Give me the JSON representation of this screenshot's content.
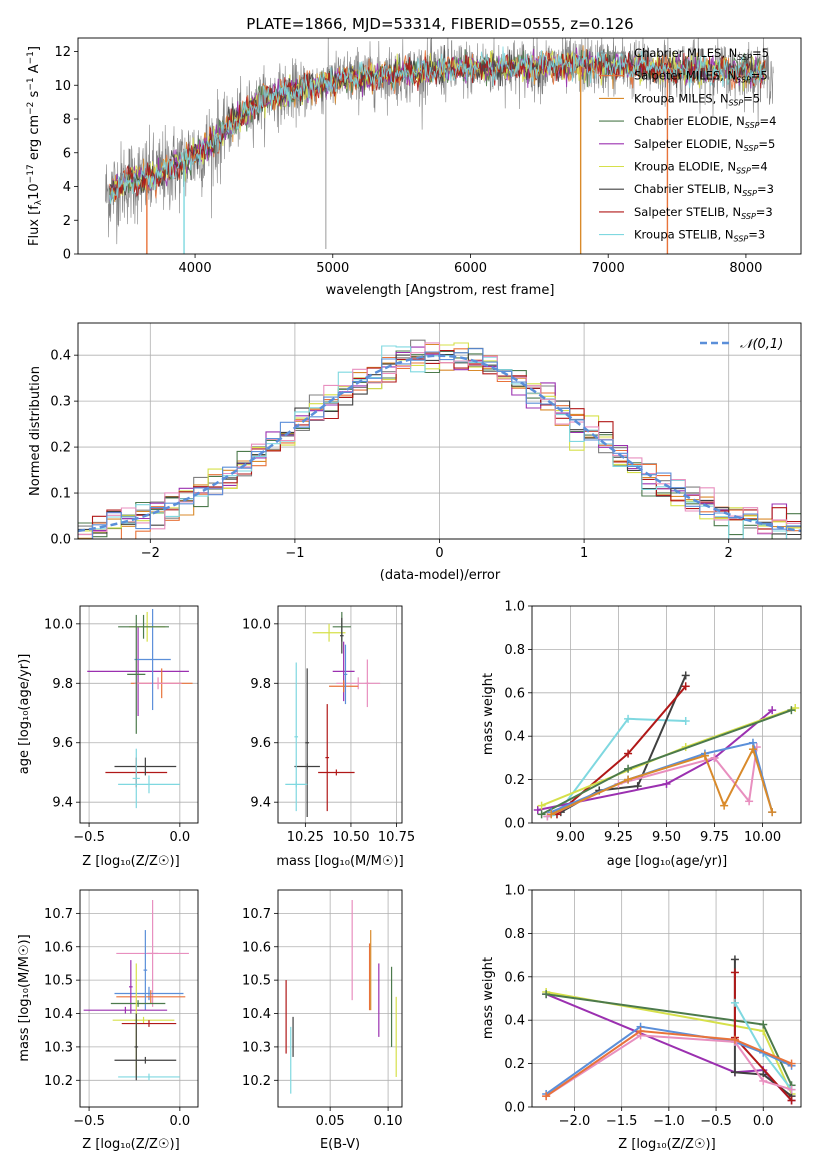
{
  "colors": {
    "chabrier_miles": "#808080",
    "salpeter_miles": "#e8733a",
    "kroupa_miles": "#d98a2b",
    "chabrier_elodie": "#4c7a4c",
    "salpeter_elodie": "#9b30b0",
    "kroupa_elodie": "#d6e04a",
    "chabrier_stelib": "#404040",
    "salpeter_stelib": "#b01818",
    "kroupa_stelib": "#7fd8e0",
    "pink": "#e88fbf",
    "blue": "#5b8fd9",
    "normal": "#5b8fd9"
  },
  "chart_data": [
    {
      "type": "line",
      "title": "PLATE=1866, MJD=53314, FIBERID=0555, z=0.126",
      "xlabel": "wavelength [Angstrom, rest frame]",
      "ylabel_parts": [
        "Flux [f",
        "λ",
        "10",
        "−17",
        " erg cm",
        "−2",
        " s",
        "−1",
        " A",
        "−1",
        "]"
      ],
      "xlim": [
        3150,
        8400
      ],
      "ylim": [
        0,
        12.8
      ],
      "xticks": [
        4000,
        5000,
        6000,
        7000,
        8000
      ],
      "yticks": [
        0,
        2,
        4,
        6,
        8,
        10,
        12
      ],
      "spectrum_range": [
        3350,
        8200
      ],
      "continuum": [
        [
          3350,
          3.5
        ],
        [
          3500,
          4.3
        ],
        [
          3700,
          4.5
        ],
        [
          3900,
          5.4
        ],
        [
          4100,
          6.4
        ],
        [
          4300,
          8.0
        ],
        [
          4500,
          9.2
        ],
        [
          4800,
          9.8
        ],
        [
          5100,
          10.4
        ],
        [
          5500,
          10.7
        ],
        [
          6000,
          11.0
        ],
        [
          6500,
          11.1
        ],
        [
          7000,
          11.2
        ],
        [
          7500,
          10.9
        ],
        [
          8000,
          10.8
        ],
        [
          8200,
          10.7
        ]
      ],
      "legend": [
        {
          "name": "Chabrier MILES",
          "nssp": "5",
          "color": "#808080"
        },
        {
          "name": "Salpeter MILES",
          "nssp": "5",
          "color": "#e8733a"
        },
        {
          "name": "Kroupa MILES",
          "nssp": "5",
          "color": "#d98a2b"
        },
        {
          "name": "Chabrier ELODIE",
          "nssp": "4",
          "color": "#4c7a4c"
        },
        {
          "name": "Salpeter ELODIE",
          "nssp": "5",
          "color": "#9b30b0"
        },
        {
          "name": "Kroupa ELODIE",
          "nssp": "4",
          "color": "#d6e04a"
        },
        {
          "name": "Chabrier STELIB",
          "nssp": "3",
          "color": "#404040"
        },
        {
          "name": "Salpeter STELIB",
          "nssp": "3",
          "color": "#b01818"
        },
        {
          "name": "Kroupa STELIB",
          "nssp": "3",
          "color": "#7fd8e0"
        }
      ],
      "legend_location": "top-right",
      "drops": [
        {
          "x": 3920,
          "color": "#7fd8e0"
        },
        {
          "x": 3650,
          "color": "#e8733a"
        },
        {
          "x": 6800,
          "color": "#d98a2b"
        },
        {
          "x": 7430,
          "color": "#e8733a"
        }
      ]
    },
    {
      "type": "area",
      "xlabel": "(data-model)/error",
      "ylabel": "Normed distribution",
      "xlim": [
        -2.5,
        2.5
      ],
      "ylim": [
        0,
        0.47
      ],
      "xticks": [
        -2,
        -1,
        0,
        1,
        2
      ],
      "yticks": [
        0.0,
        0.1,
        0.2,
        0.3,
        0.4
      ],
      "bin_width": 0.1,
      "legend": "𝒩(0,1)",
      "legend_location": "top-right",
      "grid": true
    },
    {
      "type": "scatter",
      "xlabel": "Z [log₁₀(Z/Z☉)]",
      "ylabel": "age  [log₁₀(age/yr)]",
      "xlim": [
        -0.55,
        0.1
      ],
      "ylim": [
        9.33,
        10.06
      ],
      "xticks": [
        -0.5,
        0.0
      ],
      "yticks": [
        9.4,
        9.6,
        9.8,
        10.0
      ],
      "grid": true,
      "crosses": [
        {
          "x": -0.23,
          "xerr": 0.28,
          "y": 9.84,
          "yerr": 0.15,
          "color": "#9b30b0"
        },
        {
          "x": -0.1,
          "xerr": 0.17,
          "y": 9.8,
          "yerr": 0.05,
          "color": "#e8733a"
        },
        {
          "x": -0.12,
          "xerr": 0.13,
          "y": 9.8,
          "yerr": 0.02,
          "color": "#e88fbf"
        },
        {
          "x": -0.15,
          "xerr": 0.1,
          "y": 9.88,
          "yerr": 0.17,
          "color": "#5b8fd9"
        },
        {
          "x": -0.18,
          "xerr": 0.1,
          "y": 9.99,
          "yerr": 0.05,
          "color": "#d6e04a"
        },
        {
          "x": -0.2,
          "xerr": 0.14,
          "y": 9.99,
          "yerr": 0.04,
          "color": "#4c7a4c"
        },
        {
          "x": -0.24,
          "xerr": 0.05,
          "y": 9.83,
          "yerr": 0.2,
          "color": "#4c7a4c"
        },
        {
          "x": -0.24,
          "xerr": 0.17,
          "y": 9.5,
          "yerr": 0.05,
          "color": "#b01818"
        },
        {
          "x": -0.19,
          "xerr": 0.17,
          "y": 9.52,
          "yerr": 0.03,
          "color": "#404040"
        },
        {
          "x": -0.17,
          "xerr": 0.17,
          "y": 9.46,
          "yerr": 0.03,
          "color": "#7fd8e0"
        },
        {
          "x": -0.24,
          "xerr": 0.02,
          "y": 9.48,
          "yerr": 0.1,
          "color": "#7fd8e0"
        }
      ]
    },
    {
      "type": "scatter",
      "xlabel": "mass [log₁₀(M/M☉)]",
      "xlim": [
        10.1,
        10.78
      ],
      "ylim": [
        9.33,
        10.06
      ],
      "xticks": [
        10.25,
        10.5,
        10.75
      ],
      "yticks": [
        9.4,
        9.6,
        9.8,
        10.0
      ],
      "grid": true,
      "crosses": [
        {
          "x": 10.38,
          "xerr": 0.09,
          "y": 9.97,
          "yerr": 0.03,
          "color": "#d6e04a"
        },
        {
          "x": 10.45,
          "xerr": 0.05,
          "y": 9.99,
          "yerr": 0.05,
          "color": "#4c7a4c"
        },
        {
          "x": 10.45,
          "xerr": 0.01,
          "y": 9.96,
          "yerr": 0.06,
          "color": "#404040"
        },
        {
          "x": 10.46,
          "xerr": 0.06,
          "y": 9.84,
          "yerr": 0.1,
          "color": "#9b30b0"
        },
        {
          "x": 10.54,
          "xerr": 0.12,
          "y": 9.8,
          "yerr": 0.02,
          "color": "#e88fbf"
        },
        {
          "x": 10.46,
          "xerr": 0.08,
          "y": 9.79,
          "yerr": 0.02,
          "color": "#e8733a"
        },
        {
          "x": 10.59,
          "xerr": 0.01,
          "y": 9.8,
          "yerr": 0.08,
          "color": "#e88fbf"
        },
        {
          "x": 10.47,
          "xerr": 0.01,
          "y": 9.83,
          "yerr": 0.1,
          "color": "#5b8fd9"
        },
        {
          "x": 10.42,
          "xerr": 0.1,
          "y": 9.5,
          "yerr": 0.01,
          "color": "#b01818"
        },
        {
          "x": 10.37,
          "xerr": 0.01,
          "y": 9.55,
          "yerr": 0.18,
          "color": "#b01818"
        },
        {
          "x": 10.26,
          "xerr": 0.07,
          "y": 9.52,
          "yerr": 0.01,
          "color": "#404040"
        },
        {
          "x": 10.26,
          "xerr": 0.01,
          "y": 9.6,
          "yerr": 0.25,
          "color": "#404040"
        },
        {
          "x": 10.2,
          "xerr": 0.06,
          "y": 9.46,
          "yerr": 0.01,
          "color": "#7fd8e0"
        },
        {
          "x": 10.2,
          "xerr": 0.01,
          "y": 9.62,
          "yerr": 0.25,
          "color": "#7fd8e0"
        }
      ]
    },
    {
      "type": "line",
      "xlabel": "age  [log₁₀(age/yr)]",
      "ylabel": "mass weight",
      "xlim": [
        8.8,
        10.2
      ],
      "ylim": [
        0.0,
        1.0
      ],
      "xticks": [
        9.0,
        9.25,
        9.5,
        9.75,
        10.0
      ],
      "yticks": [
        0.0,
        0.2,
        0.4,
        0.6,
        0.8,
        1.0
      ],
      "grid": true,
      "series": [
        {
          "color": "#7fd8e0",
          "points": [
            [
              8.88,
              0.03
            ],
            [
              8.93,
              0.04
            ],
            [
              9.3,
              0.48
            ],
            [
              9.6,
              0.47
            ]
          ]
        },
        {
          "color": "#404040",
          "points": [
            [
              8.95,
              0.05
            ],
            [
              9.15,
              0.15
            ],
            [
              9.35,
              0.17
            ],
            [
              9.6,
              0.68
            ]
          ]
        },
        {
          "color": "#b01818",
          "points": [
            [
              8.93,
              0.04
            ],
            [
              9.3,
              0.32
            ],
            [
              9.6,
              0.63
            ]
          ]
        },
        {
          "color": "#9b30b0",
          "points": [
            [
              8.83,
              0.06
            ],
            [
              9.5,
              0.18
            ],
            [
              9.75,
              0.3
            ],
            [
              10.05,
              0.52
            ]
          ]
        },
        {
          "color": "#d6e04a",
          "points": [
            [
              8.85,
              0.08
            ],
            [
              9.6,
              0.35
            ],
            [
              10.17,
              0.53
            ]
          ]
        },
        {
          "color": "#4c7a4c",
          "points": [
            [
              8.85,
              0.04
            ],
            [
              9.3,
              0.25
            ],
            [
              10.15,
              0.52
            ]
          ]
        },
        {
          "color": "#e88fbf",
          "points": [
            [
              8.88,
              0.03
            ],
            [
              9.25,
              0.18
            ],
            [
              9.75,
              0.3
            ],
            [
              9.93,
              0.1
            ],
            [
              9.97,
              0.35
            ]
          ]
        },
        {
          "color": "#5b8fd9",
          "points": [
            [
              8.9,
              0.05
            ],
            [
              9.3,
              0.2
            ],
            [
              9.7,
              0.32
            ],
            [
              9.95,
              0.37
            ],
            [
              10.05,
              0.05
            ]
          ]
        },
        {
          "color": "#d98a2b",
          "points": [
            [
              8.9,
              0.04
            ],
            [
              9.3,
              0.2
            ],
            [
              9.7,
              0.31
            ],
            [
              9.8,
              0.08
            ],
            [
              9.95,
              0.34
            ],
            [
              10.05,
              0.05
            ]
          ]
        }
      ]
    },
    {
      "type": "scatter",
      "xlabel": "Z [log₁₀(Z/Z☉)]",
      "ylabel": "mass [log₁₀(M/M☉)]",
      "xlim": [
        -0.55,
        0.1
      ],
      "ylim": [
        10.12,
        10.77
      ],
      "xticks": [
        -0.5,
        0.0
      ],
      "yticks": [
        10.2,
        10.3,
        10.4,
        10.5,
        10.6,
        10.7
      ],
      "grid": true,
      "crosses": [
        {
          "x": -0.15,
          "xerr": 0.03,
          "y": 10.58,
          "yerr": 0.16,
          "color": "#e88fbf"
        },
        {
          "x": -0.15,
          "xerr": 0.2,
          "y": 10.58,
          "yerr": 0.0,
          "color": "#e88fbf"
        },
        {
          "x": -0.17,
          "xerr": 0.19,
          "y": 10.46,
          "yerr": 0.02,
          "color": "#5b8fd9"
        },
        {
          "x": -0.16,
          "xerr": 0.19,
          "y": 10.45,
          "yerr": 0.02,
          "color": "#e8733a"
        },
        {
          "x": -0.19,
          "xerr": 0.01,
          "y": 10.53,
          "yerr": 0.12,
          "color": "#5b8fd9"
        },
        {
          "x": -0.27,
          "xerr": 0.01,
          "y": 10.48,
          "yerr": 0.08,
          "color": "#9b30b0"
        },
        {
          "x": -0.23,
          "xerr": 0.15,
          "y": 10.43,
          "yerr": 0.01,
          "color": "#4c7a4c"
        },
        {
          "x": -0.3,
          "xerr": 0.23,
          "y": 10.41,
          "yerr": 0.01,
          "color": "#9b30b0"
        },
        {
          "x": -0.2,
          "xerr": 0.17,
          "y": 10.38,
          "yerr": 0.01,
          "color": "#d6e04a"
        },
        {
          "x": -0.17,
          "xerr": 0.15,
          "y": 10.37,
          "yerr": 0.01,
          "color": "#b01818"
        },
        {
          "x": -0.24,
          "xerr": 0.01,
          "y": 10.38,
          "yerr": 0.17,
          "color": "#d6e04a"
        },
        {
          "x": -0.19,
          "xerr": 0.17,
          "y": 10.26,
          "yerr": 0.01,
          "color": "#404040"
        },
        {
          "x": -0.17,
          "xerr": 0.17,
          "y": 10.21,
          "yerr": 0.01,
          "color": "#7fd8e0"
        },
        {
          "x": -0.24,
          "xerr": 0.01,
          "y": 10.3,
          "yerr": 0.1,
          "color": "#404040"
        }
      ]
    },
    {
      "type": "scatter",
      "xlabel": "E(B-V)",
      "xlim": [
        0.005,
        0.112
      ],
      "ylim": [
        10.12,
        10.77
      ],
      "xticks": [
        0.05,
        0.1
      ],
      "yticks": [
        10.2,
        10.3,
        10.4,
        10.5,
        10.6,
        10.7
      ],
      "grid": true,
      "crosses": [
        {
          "x": 0.012,
          "y": 10.39,
          "yerr": 0.11,
          "color": "#b01818"
        },
        {
          "x": 0.016,
          "y": 10.26,
          "yerr": 0.1,
          "color": "#7fd8e0"
        },
        {
          "x": 0.018,
          "y": 10.33,
          "yerr": 0.06,
          "color": "#404040"
        },
        {
          "x": 0.069,
          "y": 10.59,
          "yerr": 0.15,
          "color": "#e88fbf"
        },
        {
          "x": 0.084,
          "y": 10.51,
          "yerr": 0.1,
          "color": "#e8733a"
        },
        {
          "x": 0.085,
          "y": 10.53,
          "yerr": 0.12,
          "color": "#d98a2b"
        },
        {
          "x": 0.092,
          "y": 10.44,
          "yerr": 0.11,
          "color": "#9b30b0"
        },
        {
          "x": 0.103,
          "y": 10.42,
          "yerr": 0.12,
          "color": "#4c7a4c"
        },
        {
          "x": 0.107,
          "y": 10.33,
          "yerr": 0.12,
          "color": "#d6e04a"
        }
      ]
    },
    {
      "type": "line",
      "xlabel": "Z [log₁₀(Z/Z☉)]",
      "ylabel": "mass weight",
      "xlim": [
        -2.45,
        0.4
      ],
      "ylim": [
        0.0,
        1.0
      ],
      "xticks": [
        -2.0,
        -1.5,
        -1.0,
        -0.5,
        0.0
      ],
      "yticks": [
        0.0,
        0.2,
        0.4,
        0.6,
        0.8,
        1.0
      ],
      "grid": true,
      "series": [
        {
          "color": "#9b30b0",
          "points": [
            [
              -2.3,
              0.52
            ],
            [
              -0.3,
              0.16
            ],
            [
              0.0,
              0.17
            ],
            [
              0.3,
              0.03
            ]
          ]
        },
        {
          "color": "#d6e04a",
          "points": [
            [
              -2.3,
              0.53
            ],
            [
              0.0,
              0.35
            ],
            [
              0.3,
              0.06
            ]
          ]
        },
        {
          "color": "#4c7a4c",
          "points": [
            [
              -2.3,
              0.52
            ],
            [
              0.0,
              0.38
            ],
            [
              0.3,
              0.1
            ]
          ]
        },
        {
          "color": "#404040",
          "points": [
            [
              -0.3,
              0.68
            ],
            [
              -0.3,
              0.16
            ],
            [
              0.0,
              0.15
            ],
            [
              0.3,
              0.05
            ]
          ]
        },
        {
          "color": "#b01818",
          "points": [
            [
              -0.3,
              0.62
            ],
            [
              -0.3,
              0.32
            ],
            [
              0.3,
              0.03
            ]
          ]
        },
        {
          "color": "#7fd8e0",
          "points": [
            [
              -0.3,
              0.48
            ],
            [
              0.0,
              0.25
            ],
            [
              0.3,
              0.08
            ]
          ]
        },
        {
          "color": "#5b8fd9",
          "points": [
            [
              -2.3,
              0.06
            ],
            [
              -1.3,
              0.37
            ],
            [
              -0.3,
              0.3
            ],
            [
              0.0,
              0.25
            ],
            [
              0.3,
              0.19
            ]
          ]
        },
        {
          "color": "#e88fbf",
          "points": [
            [
              -2.3,
              0.05
            ],
            [
              -1.3,
              0.33
            ],
            [
              -0.3,
              0.3
            ],
            [
              0.0,
              0.12
            ],
            [
              0.3,
              0.08
            ]
          ]
        },
        {
          "color": "#e8733a",
          "points": [
            [
              -2.3,
              0.05
            ],
            [
              -1.3,
              0.35
            ],
            [
              -0.3,
              0.31
            ],
            [
              0.3,
              0.2
            ]
          ]
        }
      ]
    }
  ]
}
